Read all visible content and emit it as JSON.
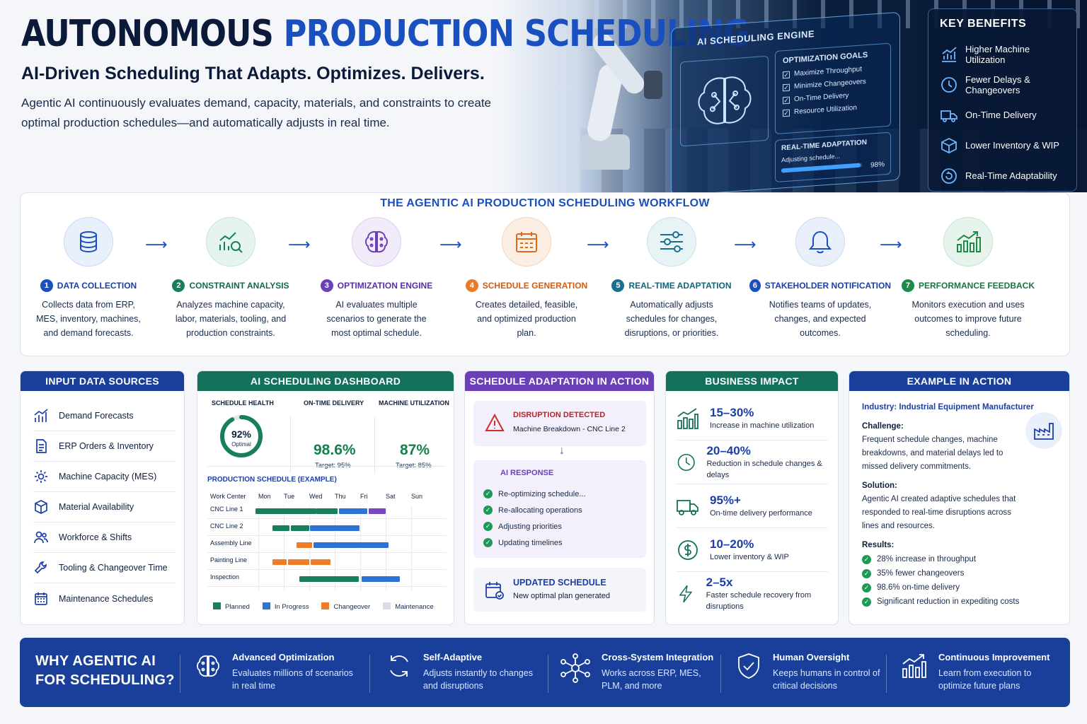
{
  "header": {
    "title_main": "AUTONOMOUS",
    "title_accent": "PRODUCTION SCHEDULING",
    "subtitle": "AI-Driven Scheduling That Adapts. Optimizes. Delivers.",
    "intro": "Agentic AI continuously evaluates demand, capacity, materials, and constraints to create optimal production schedules—and automatically adjusts in real time."
  },
  "engine": {
    "title": "AI SCHEDULING ENGINE",
    "goals_title": "OPTIMIZATION GOALS",
    "goals": [
      "Maximize Throughput",
      "Minimize Changeovers",
      "On-Time Delivery",
      "Resource Utilization"
    ],
    "adapt_title": "REAL-TIME ADAPTATION",
    "adapt_status": "Adjusting schedule...",
    "adapt_pct": "98%",
    "adapt_progress": 0.98
  },
  "benefits": {
    "title": "KEY BENEFITS",
    "items": [
      {
        "label": "Higher Machine Utilization",
        "icon": "chart-up-icon"
      },
      {
        "label": "Fewer Delays & Changeovers",
        "icon": "clock-icon"
      },
      {
        "label": "On-Time Delivery",
        "icon": "truck-icon"
      },
      {
        "label": "Lower Inventory & WIP",
        "icon": "box-icon"
      },
      {
        "label": "Real-Time Adaptability",
        "icon": "refresh-icon"
      }
    ]
  },
  "workflow": {
    "title": "THE AGENTIC AI PRODUCTION SCHEDULING WORKFLOW",
    "steps": [
      {
        "num": "1",
        "label": "DATA COLLECTION",
        "desc": "Collects data from ERP, MES, inventory, machines, and demand forecasts.",
        "color": "#1a4fbf"
      },
      {
        "num": "2",
        "label": "CONSTRAINT ANALYSIS",
        "desc": "Analyzes machine capacity, labor, materials, tooling, and production constraints.",
        "color": "#17805a"
      },
      {
        "num": "3",
        "label": "OPTIMIZATION ENGINE",
        "desc": "AI evaluates multiple scenarios to generate the most optimal schedule.",
        "color": "#6b3fb8"
      },
      {
        "num": "4",
        "label": "SCHEDULE GENERATION",
        "desc": "Creates detailed, feasible, and optimized production plan.",
        "color": "#e06a1a"
      },
      {
        "num": "5",
        "label": "REAL-TIME ADAPTATION",
        "desc": "Automatically adjusts schedules for changes, disruptions, or priorities.",
        "color": "#1a6f8a"
      },
      {
        "num": "6",
        "label": "STAKEHOLDER NOTIFICATION",
        "desc": "Notifies teams of updates, changes, and expected outcomes.",
        "color": "#1a4fbf"
      },
      {
        "num": "7",
        "label": "PERFORMANCE FEEDBACK",
        "desc": "Monitors execution and uses outcomes to improve future scheduling.",
        "color": "#1e8a4a"
      }
    ]
  },
  "inputs": {
    "title": "INPUT DATA SOURCES",
    "items": [
      "Demand Forecasts",
      "ERP Orders & Inventory",
      "Machine Capacity (MES)",
      "Material Availability",
      "Workforce & Shifts",
      "Tooling & Changeover Time",
      "Maintenance Schedules"
    ]
  },
  "dashboard": {
    "title": "AI SCHEDULING DASHBOARD",
    "health_label": "SCHEDULE HEALTH",
    "health_value": "92%",
    "health_status": "Optimal",
    "health_fraction": 0.92,
    "otd_label": "ON-TIME DELIVERY",
    "otd_value": "98.6%",
    "otd_target": "Target: 95%",
    "util_label": "MACHINE UTILIZATION",
    "util_value": "87%",
    "util_target": "Target: 85%",
    "schedule_title": "PRODUCTION SCHEDULE (EXAMPLE)",
    "col_header": "Work Center",
    "days": [
      "Mon",
      "Tue",
      "Wed",
      "Thu",
      "Fri",
      "Sat",
      "Sun"
    ],
    "centers": [
      "CNC Line 1",
      "CNC Line 2",
      "Assembly Line",
      "Painting Line",
      "Inspection"
    ],
    "legend": [
      "Planned",
      "In Progress",
      "Changeover",
      "Maintenance"
    ]
  },
  "adaptation": {
    "title": "SCHEDULE ADAPTATION IN ACTION",
    "alert_title": "DISRUPTION DETECTED",
    "alert_desc": "Machine Breakdown - CNC Line 2",
    "ai_title": "AI RESPONSE",
    "ai_items": [
      "Re-optimizing schedule...",
      "Re-allocating operations",
      "Adjusting priorities",
      "Updating timelines"
    ],
    "update_title": "UPDATED SCHEDULE",
    "update_desc": "New optimal plan generated"
  },
  "impact": {
    "title": "BUSINESS IMPACT",
    "items": [
      {
        "value": "15–30%",
        "label": "Increase in machine utilization"
      },
      {
        "value": "20–40%",
        "label": "Reduction in schedule changes & delays"
      },
      {
        "value": "95%+",
        "label": "On-time delivery performance"
      },
      {
        "value": "10–20%",
        "label": "Lower inventory & WIP"
      },
      {
        "value": "2–5x",
        "label": "Faster schedule recovery from disruptions"
      }
    ]
  },
  "example": {
    "title": "EXAMPLE IN ACTION",
    "industry": "Industry: Industrial Equipment Manufacturer",
    "challenge_label": "Challenge:",
    "challenge": "Frequent schedule changes, machine breakdowns, and material delays led to missed delivery commitments.",
    "solution_label": "Solution:",
    "solution": "Agentic AI created adaptive schedules that responded to real-time disruptions across lines and resources.",
    "results_label": "Results:",
    "results": [
      "28% increase in throughput",
      "35% fewer changeovers",
      "98.6% on-time delivery",
      "Significant reduction in expediting costs"
    ]
  },
  "why": {
    "title_line1": "WHY AGENTIC AI",
    "title_line2": "FOR SCHEDULING?",
    "items": [
      {
        "title": "Advanced Optimization",
        "desc": "Evaluates millions of scenarios in real time"
      },
      {
        "title": "Self-Adaptive",
        "desc": "Adjusts instantly to changes and disruptions"
      },
      {
        "title": "Cross-System Integration",
        "desc": "Works across ERP, MES, PLM, and more"
      },
      {
        "title": "Human Oversight",
        "desc": "Keeps humans in control of critical decisions"
      },
      {
        "title": "Continuous Improvement",
        "desc": "Learn from execution to optimize future plans"
      }
    ]
  }
}
